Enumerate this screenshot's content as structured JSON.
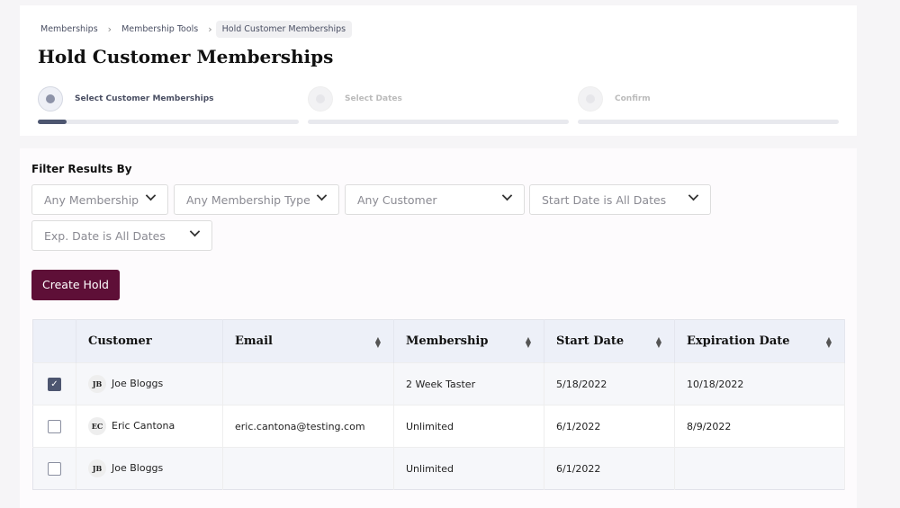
{
  "breadcrumb": [
    "Memberships",
    "Membership Tools",
    "Hold Customer Memberships"
  ],
  "title": "Hold Customer Memberships",
  "steps": [
    {
      "label": "Select Customer Memberships",
      "progress": 0.11,
      "active": true
    },
    {
      "label": "Select Dates",
      "progress": 0,
      "active": false
    },
    {
      "label": "Confirm",
      "progress": 0,
      "active": false
    }
  ],
  "filter": {
    "title": "Filter Results By",
    "dropdowns": [
      "Any Membership",
      "Any Membership Type",
      "Any Customer",
      "Start Date is All Dates",
      "Exp. Date is All Dates"
    ]
  },
  "create_hold": "Create Hold",
  "table": {
    "headers": [
      "Customer",
      "Email",
      "Membership",
      "Start Date",
      "Expiration Date"
    ],
    "rows": [
      {
        "checked": true,
        "initials": "JB",
        "customer": "Joe Bloggs",
        "email": "",
        "membership": "2 Week Taster",
        "start": "5/18/2022",
        "expiration": "10/18/2022"
      },
      {
        "checked": false,
        "initials": "EC",
        "customer": "Eric Cantona",
        "email": "eric.cantona@testing.com",
        "membership": "Unlimited",
        "start": "6/1/2022",
        "expiration": "8/9/2022"
      },
      {
        "checked": false,
        "initials": "JB",
        "customer": "Joe Bloggs",
        "email": "",
        "membership": "Unlimited",
        "start": "6/1/2022",
        "expiration": ""
      }
    ]
  },
  "colors": {
    "primary_button": "#5e0f37",
    "step_active": "#4d5670"
  }
}
